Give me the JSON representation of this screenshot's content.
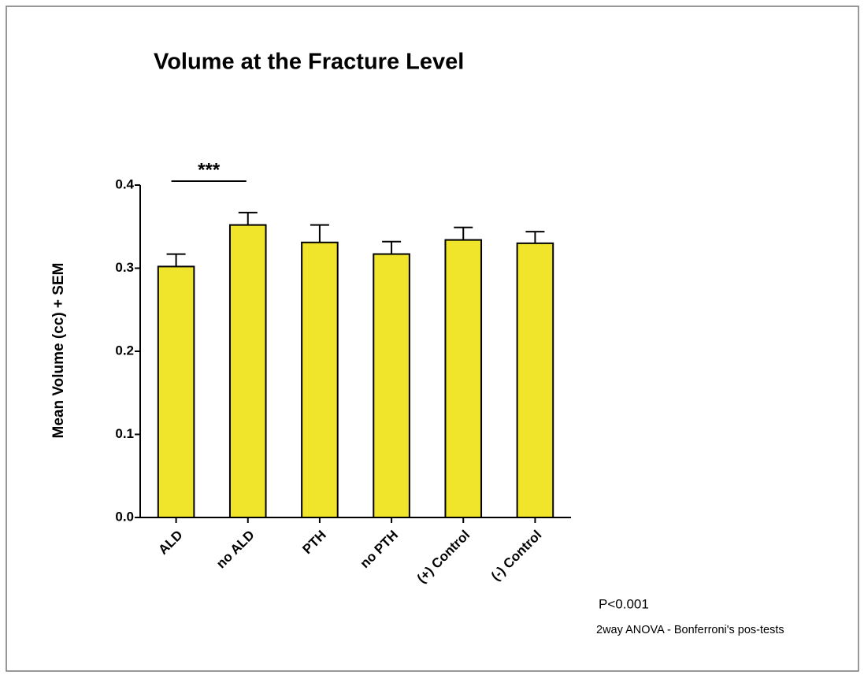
{
  "chart_data": {
    "type": "bar",
    "title": "Volume  at the Fracture Level",
    "y_label": "Mean Volume (cc) + SEM",
    "categories": [
      "ALD",
      "no ALD",
      "PTH",
      "no PTH",
      "(+) Control",
      "(-) Control"
    ],
    "values": [
      0.302,
      0.352,
      0.331,
      0.317,
      0.334,
      0.33
    ],
    "errors": [
      0.015,
      0.015,
      0.021,
      0.015,
      0.015,
      0.014
    ],
    "color": "#f1e52b",
    "ylim": [
      0,
      0.4
    ],
    "yticks": [
      {
        "value": 0,
        "label": "0.0"
      },
      0.1,
      0.2,
      0.3,
      0.4
    ],
    "significance": "***",
    "annotations": [
      "P<0.001",
      "2way ANOVA - Bonferroni's pos-tests"
    ]
  }
}
